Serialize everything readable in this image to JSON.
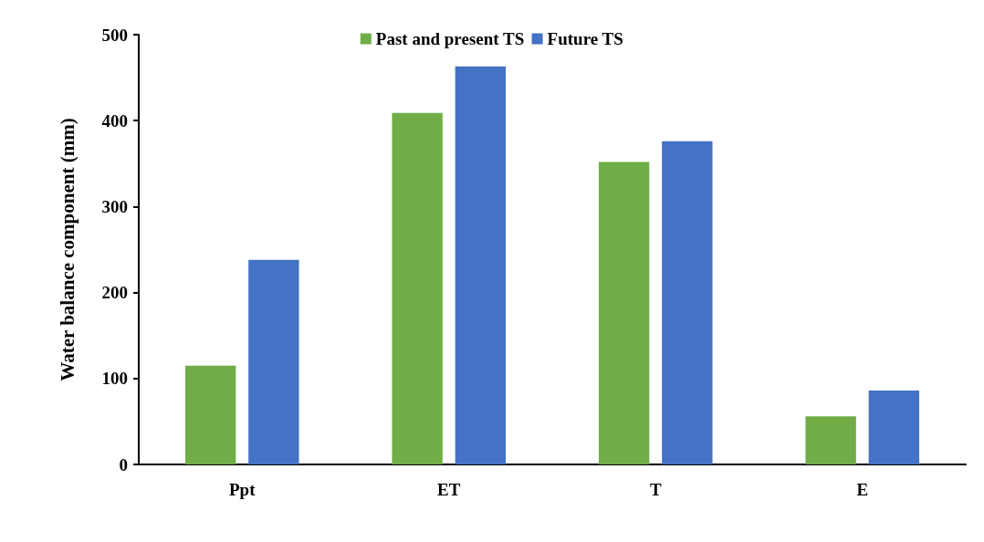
{
  "chart_data": {
    "type": "bar",
    "ylabel": "Water balance component (mm)",
    "categories": [
      "Ppt",
      "ET",
      "T",
      "E"
    ],
    "series": [
      {
        "name": "Past and present TS",
        "color": "#70ad47",
        "values": [
          115,
          409,
          352,
          56
        ]
      },
      {
        "name": "Future TS",
        "color": "#4472c4",
        "values": [
          238,
          463,
          376,
          86
        ]
      }
    ],
    "ylim": [
      0,
      500
    ],
    "yticks": [
      0,
      100,
      200,
      300,
      400,
      500
    ],
    "grid": false,
    "legend": "top"
  }
}
